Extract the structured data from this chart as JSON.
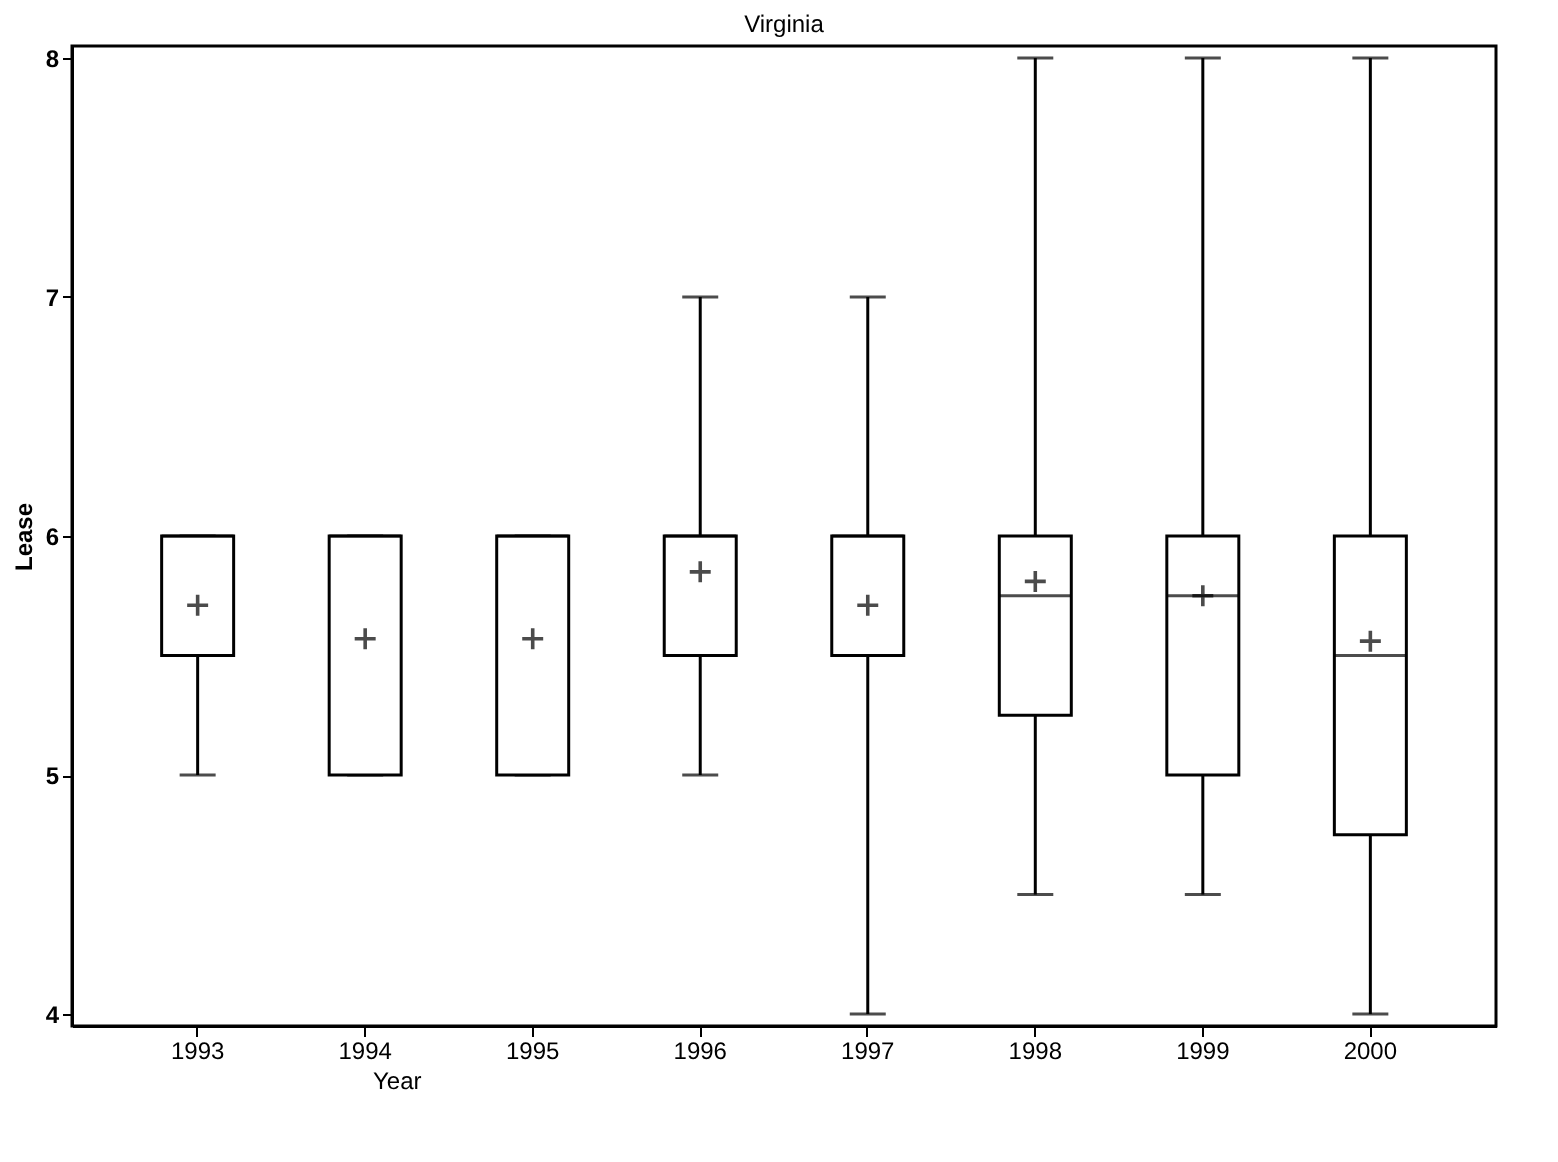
{
  "chart_data": {
    "type": "box",
    "title": "Virginia",
    "xlabel": "Year",
    "ylabel": "Lease",
    "categories": [
      "1993",
      "1994",
      "1995",
      "1996",
      "1997",
      "1998",
      "1999",
      "2000"
    ],
    "boxes": [
      {
        "low": 5,
        "q1": 5.5,
        "median": 6,
        "q3": 6,
        "high": 6,
        "mean": 5.71
      },
      {
        "low": 5,
        "q1": 5,
        "median": 6,
        "q3": 6,
        "high": 6,
        "mean": 5.57
      },
      {
        "low": 5,
        "q1": 5,
        "median": 6,
        "q3": 6,
        "high": 6,
        "mean": 5.57
      },
      {
        "low": 5,
        "q1": 5.5,
        "median": 6,
        "q3": 6,
        "high": 7,
        "mean": 5.85
      },
      {
        "low": 4,
        "q1": 5.5,
        "median": 6,
        "q3": 6,
        "high": 7,
        "mean": 5.71
      },
      {
        "low": 4.5,
        "q1": 5.25,
        "median": 5.75,
        "q3": 6,
        "high": 8,
        "mean": 5.81
      },
      {
        "low": 4.5,
        "q1": 5,
        "median": 5.75,
        "q3": 6,
        "high": 8,
        "mean": 5.75
      },
      {
        "low": 4,
        "q1": 4.75,
        "median": 5.5,
        "q3": 6,
        "high": 8,
        "mean": 5.56
      }
    ],
    "ylim": [
      3.95,
      8.05
    ],
    "yticks": [
      4,
      5,
      6,
      7,
      8
    ],
    "grid": false
  }
}
